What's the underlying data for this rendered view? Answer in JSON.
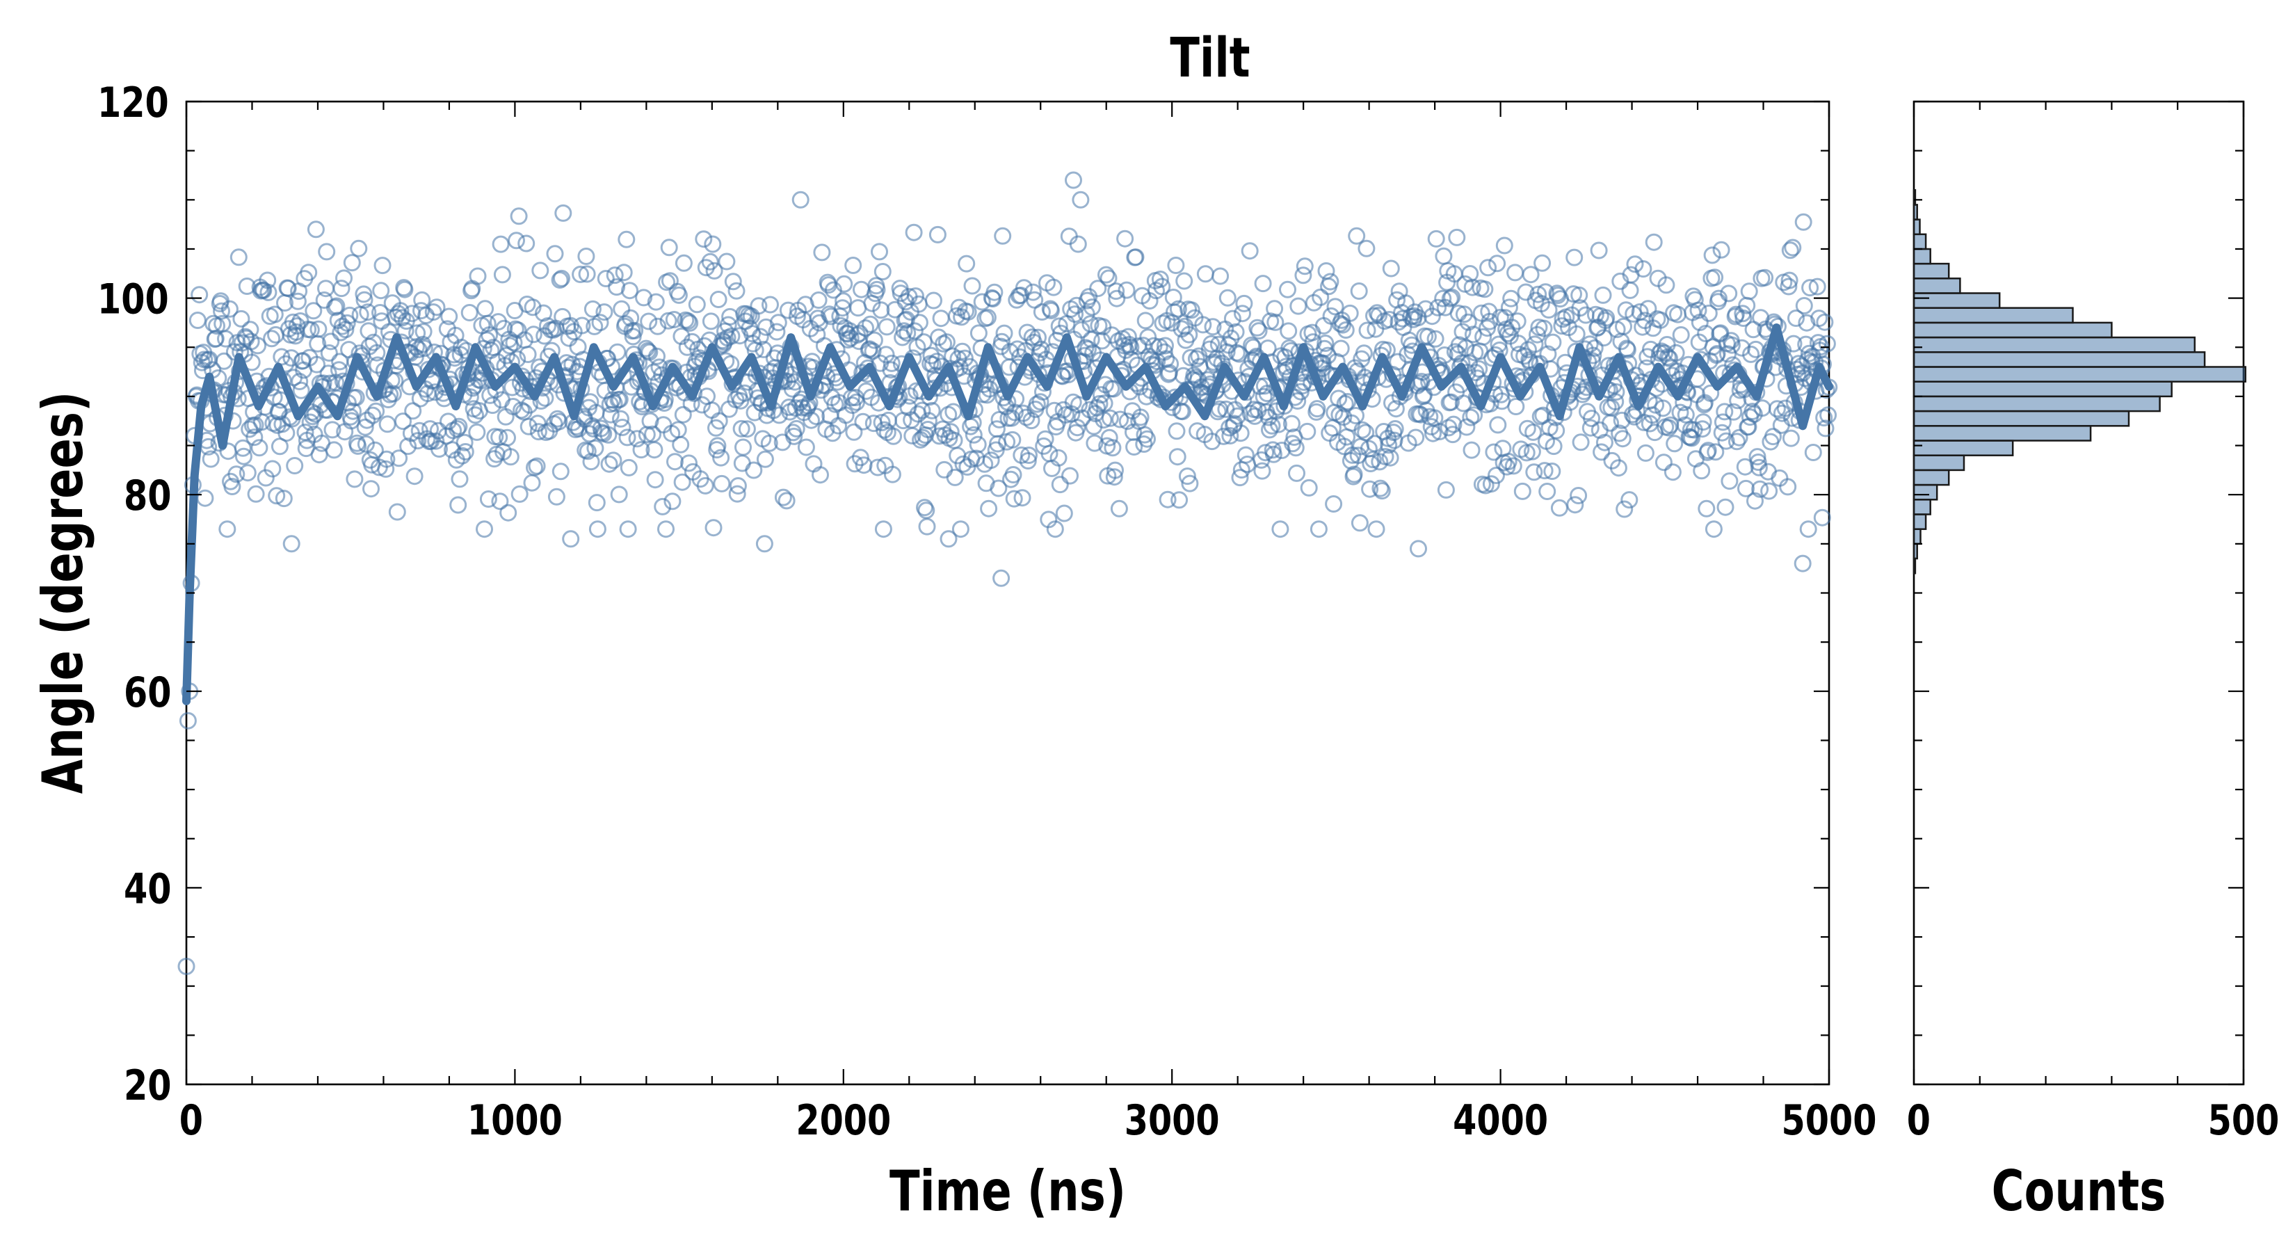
{
  "chart_data": {
    "type": "scatter",
    "title": "Tilt",
    "panels": {
      "time_series": {
        "xlabel": "Time (ns)",
        "ylabel": "Angle (degrees)",
        "xlim": [
          0,
          5000
        ],
        "ylim": [
          20,
          120
        ],
        "x_ticks": [
          0,
          1000,
          2000,
          3000,
          4000,
          5000
        ],
        "y_ticks": [
          20,
          40,
          60,
          80,
          100,
          120
        ],
        "grid": false,
        "series": [
          {
            "kind": "scatter-open-circles",
            "color": "#8fabcc",
            "summary": "approx 2000 samples, one every 2.5 ns",
            "equilibrium_mean": 92,
            "equilibrium_sd": 6,
            "initial_points": [
              [
                0,
                32
              ],
              [
                5,
                57
              ],
              [
                10,
                60
              ],
              [
                15,
                71
              ],
              [
                20,
                81
              ],
              [
                25,
                86
              ],
              [
                30,
                90
              ]
            ],
            "notable_points": [
              [
                2700,
                112
              ],
              [
                2480,
                71.5
              ],
              [
                4920,
                73
              ],
              [
                3750,
                74.5
              ],
              [
                1760,
                75
              ],
              [
                2320,
                75.5
              ],
              [
                320,
                75
              ],
              [
                1170,
                75.5
              ]
            ]
          },
          {
            "kind": "line",
            "color": "#4575a7",
            "description": "running average",
            "points": [
              [
                0,
                59
              ],
              [
                10,
                70
              ],
              [
                25,
                82
              ],
              [
                45,
                89
              ],
              [
                70,
                92
              ],
              [
                110,
                85
              ],
              [
                160,
                94
              ],
              [
                220,
                89
              ],
              [
                280,
                93
              ],
              [
                340,
                88
              ],
              [
                400,
                91
              ],
              [
                460,
                88
              ],
              [
                520,
                94
              ],
              [
                580,
                90
              ],
              [
                640,
                96
              ],
              [
                700,
                91
              ],
              [
                760,
                94
              ],
              [
                820,
                89
              ],
              [
                880,
                95
              ],
              [
                940,
                91
              ],
              [
                1000,
                93
              ],
              [
                1060,
                90
              ],
              [
                1120,
                94
              ],
              [
                1180,
                88
              ],
              [
                1240,
                95
              ],
              [
                1300,
                91
              ],
              [
                1360,
                94
              ],
              [
                1420,
                89
              ],
              [
                1480,
                93
              ],
              [
                1540,
                90
              ],
              [
                1600,
                95
              ],
              [
                1660,
                91
              ],
              [
                1720,
                94
              ],
              [
                1780,
                89
              ],
              [
                1840,
                96
              ],
              [
                1900,
                90
              ],
              [
                1960,
                95
              ],
              [
                2020,
                91
              ],
              [
                2080,
                93
              ],
              [
                2140,
                89
              ],
              [
                2200,
                94
              ],
              [
                2260,
                90
              ],
              [
                2320,
                93
              ],
              [
                2380,
                88
              ],
              [
                2440,
                95
              ],
              [
                2500,
                90
              ],
              [
                2560,
                94
              ],
              [
                2620,
                91
              ],
              [
                2680,
                96
              ],
              [
                2740,
                90
              ],
              [
                2800,
                94
              ],
              [
                2860,
                91
              ],
              [
                2920,
                93
              ],
              [
                2980,
                89
              ],
              [
                3040,
                91
              ],
              [
                3100,
                88
              ],
              [
                3160,
                93
              ],
              [
                3220,
                90
              ],
              [
                3280,
                94
              ],
              [
                3340,
                89
              ],
              [
                3400,
                95
              ],
              [
                3460,
                90
              ],
              [
                3520,
                93
              ],
              [
                3580,
                89
              ],
              [
                3640,
                94
              ],
              [
                3700,
                90
              ],
              [
                3760,
                95
              ],
              [
                3820,
                91
              ],
              [
                3880,
                93
              ],
              [
                3940,
                89
              ],
              [
                4000,
                94
              ],
              [
                4060,
                90
              ],
              [
                4120,
                93
              ],
              [
                4180,
                88
              ],
              [
                4240,
                95
              ],
              [
                4300,
                90
              ],
              [
                4360,
                94
              ],
              [
                4420,
                89
              ],
              [
                4480,
                93
              ],
              [
                4540,
                90
              ],
              [
                4600,
                94
              ],
              [
                4660,
                91
              ],
              [
                4720,
                93
              ],
              [
                4780,
                90
              ],
              [
                4840,
                97
              ],
              [
                4880,
                92
              ],
              [
                4920,
                87
              ],
              [
                4970,
                93
              ],
              [
                5000,
                91
              ]
            ]
          }
        ]
      },
      "histogram": {
        "orientation": "horizontal",
        "xlabel": "Counts",
        "xlim": [
          0,
          500
        ],
        "x_ticks": [
          0,
          500
        ],
        "shares_y_axis": true,
        "color": "#4575a7",
        "bins": [
          {
            "y0": 72,
            "y1": 73.5,
            "count": 2
          },
          {
            "y0": 73.5,
            "y1": 75,
            "count": 5
          },
          {
            "y0": 75,
            "y1": 76.5,
            "count": 10
          },
          {
            "y0": 76.5,
            "y1": 78,
            "count": 18
          },
          {
            "y0": 78,
            "y1": 79.5,
            "count": 25
          },
          {
            "y0": 79.5,
            "y1": 81,
            "count": 35
          },
          {
            "y0": 81,
            "y1": 82.5,
            "count": 53
          },
          {
            "y0": 82.5,
            "y1": 84,
            "count": 76
          },
          {
            "y0": 84,
            "y1": 85.5,
            "count": 150
          },
          {
            "y0": 85.5,
            "y1": 87,
            "count": 268
          },
          {
            "y0": 87,
            "y1": 88.5,
            "count": 326
          },
          {
            "y0": 88.5,
            "y1": 90,
            "count": 373
          },
          {
            "y0": 90,
            "y1": 91.5,
            "count": 391
          },
          {
            "y0": 91.5,
            "y1": 93,
            "count": 503
          },
          {
            "y0": 93,
            "y1": 94.5,
            "count": 441
          },
          {
            "y0": 94.5,
            "y1": 96,
            "count": 426
          },
          {
            "y0": 96,
            "y1": 97.5,
            "count": 300
          },
          {
            "y0": 97.5,
            "y1": 99,
            "count": 241
          },
          {
            "y0": 99,
            "y1": 100.5,
            "count": 130
          },
          {
            "y0": 100.5,
            "y1": 102,
            "count": 70
          },
          {
            "y0": 102,
            "y1": 103.5,
            "count": 53
          },
          {
            "y0": 103.5,
            "y1": 105,
            "count": 25
          },
          {
            "y0": 105,
            "y1": 106.5,
            "count": 18
          },
          {
            "y0": 106.5,
            "y1": 108,
            "count": 9
          },
          {
            "y0": 108,
            "y1": 109.5,
            "count": 5
          },
          {
            "y0": 109.5,
            "y1": 111,
            "count": 2
          }
        ]
      }
    }
  }
}
